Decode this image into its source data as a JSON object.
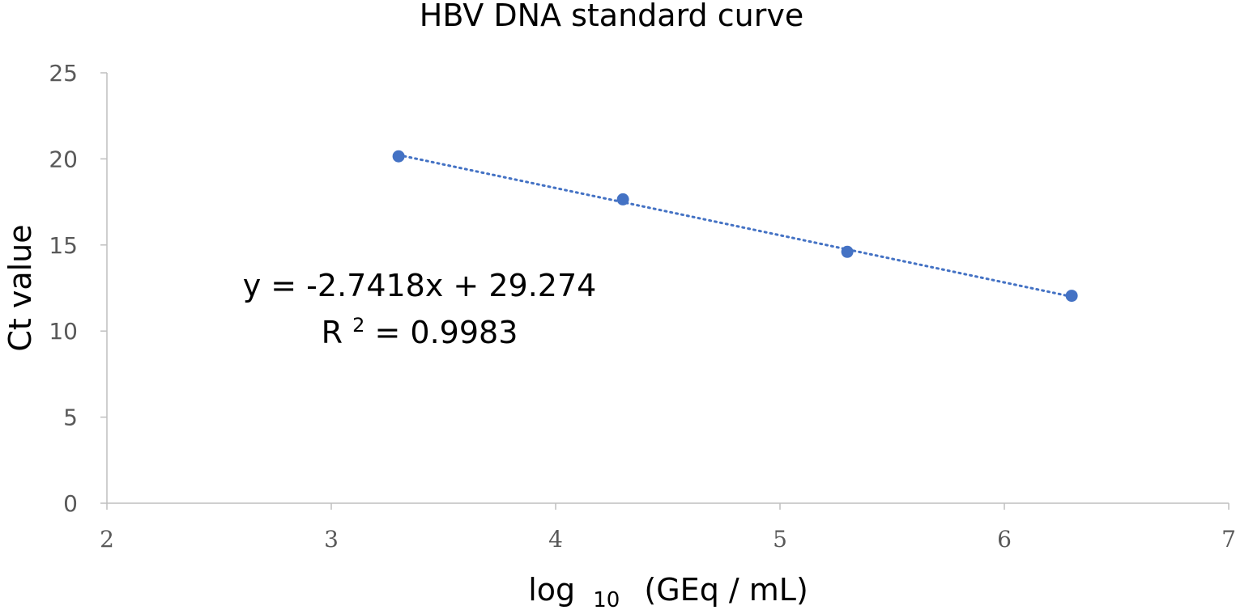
{
  "chart_data": {
    "type": "scatter",
    "title": "HBV DNA standard curve",
    "xlabel": "log",
    "xlabel_sub": "10",
    "xlabel_rest": "(GEq / mL)",
    "ylabel": "Ct value",
    "xlim": [
      2,
      7
    ],
    "ylim": [
      0,
      25
    ],
    "xticks": [
      "2",
      "3",
      "4",
      "5",
      "6",
      "7"
    ],
    "yticks": [
      "0",
      "5",
      "10",
      "15",
      "20",
      "25"
    ],
    "grid": false,
    "series": [
      {
        "x": [
          3.3,
          4.3,
          5.3,
          6.3
        ],
        "y": [
          20.15,
          17.65,
          14.6,
          12.05
        ],
        "color": "#4472C4",
        "trendline": {
          "type": "linear",
          "style": "dotted",
          "slope": -2.7418,
          "intercept": 29.274
        }
      }
    ],
    "annotations": {
      "equation": "y = -2.7418x + 29.274",
      "r2_prefix": "R",
      "r2_sup": "2",
      "r2_rest": " = 0.9983"
    },
    "colors": {
      "axis": "#bfbfbf",
      "tick_text": "#595959",
      "marker": "#4472C4"
    }
  }
}
